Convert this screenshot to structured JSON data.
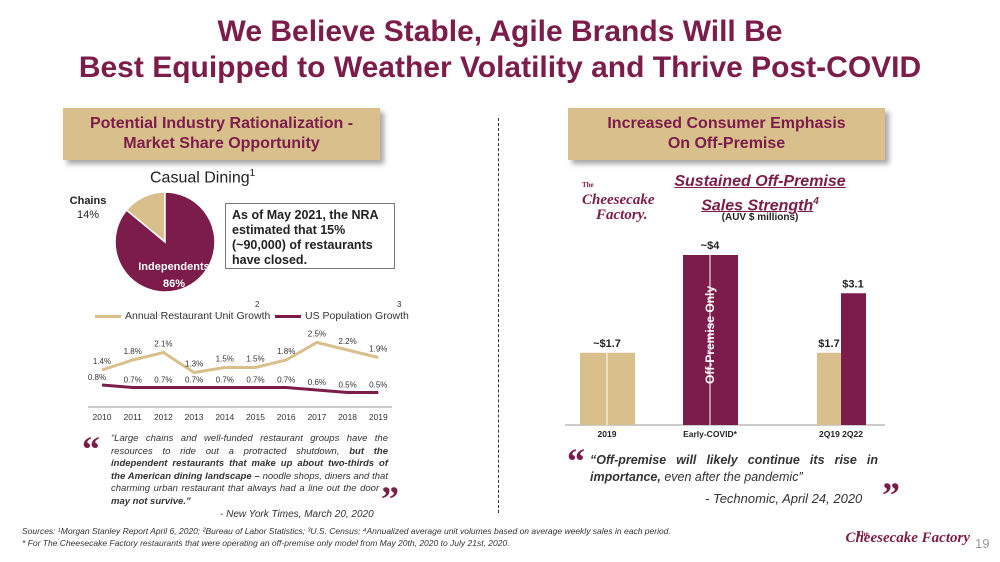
{
  "title": {
    "line1": "We Believe Stable, Agile Brands Will Be",
    "line2": "Best Equipped to Weather Volatility and Thrive Post-COVID"
  },
  "left": {
    "header_line1": "Potential Industry Rationalization -",
    "header_line2": "Market Share Opportunity",
    "pie_title": "Casual Dining",
    "pie_title_sup": "1",
    "nra_note": "As of May 2021, the NRA estimated that 15% (~90,000) of restaurants have closed.",
    "quote": {
      "p1": "“Large chains and well-funded restaurant groups have the resources to ride out a protracted shutdown,",
      "p2": " but the independent restaurants that make up about two-thirds of the American dining landscape –",
      "p3": " noodle shops, diners and that charming urban restaurant that always had a line out the door –",
      "p4": " may not survive.”",
      "attribution": "- New York Times, March 20, 2020"
    }
  },
  "right": {
    "header_line1": "Increased Consumer Emphasis",
    "header_line2": "On Off-Premise",
    "chart_title_line1": "Sustained Off-Premise",
    "chart_title_line2": "Sales Strength",
    "chart_title_sup": "4",
    "chart_subtitle": "(AUV $ millions)",
    "quote": {
      "p1": "“Off-premise will likely continue its rise in importance,",
      "p2": " even after the pandemic”",
      "attribution": "- Technomic, April 24, 2020"
    }
  },
  "logo": {
    "the": "The",
    "name": "Cheesecake Factory",
    "name_short_1": "Cheesecake",
    "name_short_2": "Factory."
  },
  "source_line1": "Sources: ¹Morgan Stanley Report April 6, 2020; ²Bureau of Labor Statistics; ³U.S. Census; ⁴Annualized average unit volumes based on average weekly sales in each period.",
  "source_line2": "*  For The Cheesecake Factory restaurants that were operating an off-premise only model from May 20th, 2020 to July 21st, 2020.",
  "page_number": "19",
  "chart_data": [
    {
      "type": "pie",
      "title": "Casual Dining",
      "slices": [
        {
          "name": "Independents",
          "value": 86,
          "label": "86%",
          "color": "#7b1c4a"
        },
        {
          "name": "Chains",
          "value": 14,
          "label": "14%",
          "color": "#d9bf8c"
        }
      ]
    },
    {
      "type": "line",
      "categories": [
        "2010",
        "2011",
        "2012",
        "2013",
        "2014",
        "2015",
        "2016",
        "2017",
        "2018",
        "2019"
      ],
      "series": [
        {
          "name": "Annual Restaurant Unit Growth",
          "sup": "2",
          "color": "#d9bf8c",
          "values": [
            1.4,
            1.8,
            2.1,
            1.3,
            1.5,
            1.5,
            1.8,
            2.5,
            2.2,
            1.9
          ],
          "labels": [
            "1.4%",
            "1.8%",
            "2.1%",
            "1.3%",
            "1.5%",
            "1.5%",
            "1.8%",
            "2.5%",
            "2.2%",
            "1.9%"
          ]
        },
        {
          "name": "US Population Growth",
          "sup": "3",
          "color": "#7b1c4a",
          "values": [
            0.8,
            0.7,
            0.7,
            0.7,
            0.7,
            0.7,
            0.7,
            0.6,
            0.5,
            0.5
          ],
          "labels": [
            "0.8%",
            "0.7%",
            "0.7%",
            "0.7%",
            "0.7%",
            "0.7%",
            "0.7%",
            "0.6%",
            "0.5%",
            "0.5%"
          ]
        }
      ],
      "ylim": [
        0,
        3.0
      ],
      "legend": "top"
    },
    {
      "type": "bar",
      "title": "Sustained Off-Premise Sales Strength",
      "ylabel": "(AUV $ millions)",
      "groups": [
        {
          "label": "2019",
          "bars": [
            {
              "value": 1.7,
              "color": "#d9bf8c"
            }
          ],
          "value_label": "~$1.7"
        },
        {
          "label": "Early-COVID*",
          "bars": [
            {
              "value": 4.0,
              "color": "#7b1c4a"
            }
          ],
          "value_label": "~$4",
          "inner_label": "Off-Premise Only"
        },
        {
          "label": "2Q19  2Q22",
          "bars": [
            {
              "value": 1.7,
              "color": "#d9bf8c",
              "label": "$1.7"
            },
            {
              "value": 3.1,
              "color": "#7b1c4a",
              "label": "$3.1"
            }
          ]
        }
      ],
      "ylim": [
        0,
        4.0
      ]
    }
  ]
}
